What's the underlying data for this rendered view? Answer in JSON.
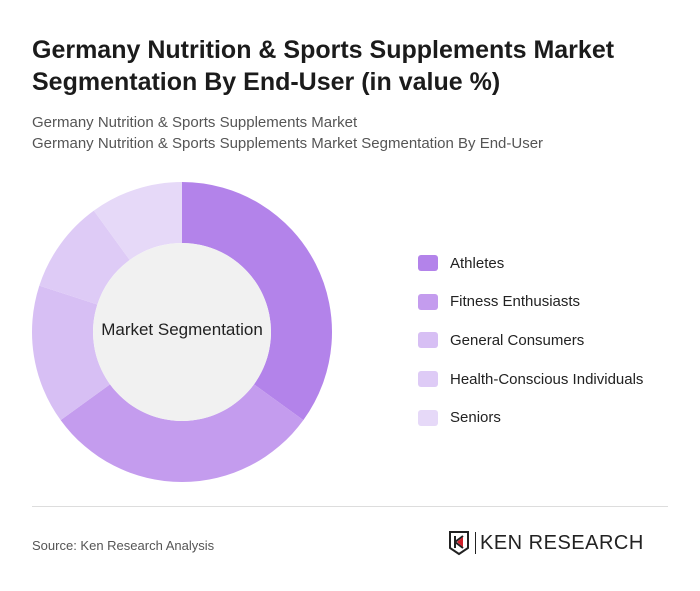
{
  "title": "Germany Nutrition & Sports Supplements Market Segmentation By End-User (in value %)",
  "subtitle1": "Germany Nutrition & Sports Supplements Market",
  "subtitle2": "Germany Nutrition & Sports Supplements Market Segmentation By End-User",
  "source": "Source: Ken Research Analysis",
  "logo_text": "KEN RESEARCH",
  "chart_data": {
    "type": "pie",
    "variant": "donut",
    "center_label": "Market Segmentation",
    "legend_position": "right",
    "categories": [
      "Athletes",
      "Fitness Enthusiasts",
      "General Consumers",
      "Health-Conscious Individuals",
      "Seniors"
    ],
    "values": [
      35,
      30,
      15,
      10,
      10
    ],
    "colors": [
      "#b383ea",
      "#c49cee",
      "#d7bff4",
      "#decbf6",
      "#e6d9f8"
    ]
  }
}
